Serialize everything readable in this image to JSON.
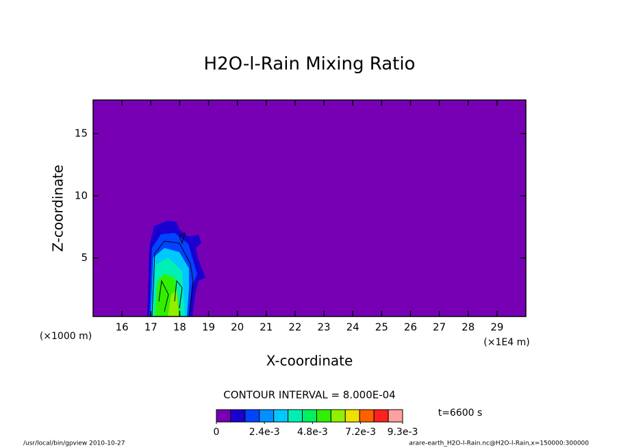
{
  "chart_data": {
    "type": "contour",
    "title": "H2O-l-Rain Mixing Ratio",
    "x_label": "X-coordinate",
    "y_label": "Z-coordinate",
    "x_unit": "(×1E4 m)",
    "y_unit": "(×1000 m)",
    "xlim": [
      15,
      30
    ],
    "xticks": [
      16,
      17,
      18,
      19,
      20,
      21,
      22,
      23,
      24,
      25,
      26,
      27,
      28,
      29
    ],
    "ylim": [
      0.3,
      17.7
    ],
    "yticks": [
      5,
      10,
      15
    ],
    "background": "#7800b4",
    "contour_interval": "CONTOUR INTERVAL = 8.000E-04",
    "time": "t=6600 s",
    "colorbar": {
      "colors": [
        "#7800b4",
        "#1a00d0",
        "#0044ff",
        "#0090ff",
        "#00c8ff",
        "#00f0b4",
        "#00f060",
        "#30f000",
        "#90f000",
        "#f0e000",
        "#ff6000",
        "#ff2020",
        "#ffa0a0"
      ],
      "clim": [
        0,
        0.0093
      ],
      "ticks": [
        0,
        {
          "value": 0.0024,
          "label": "2.4e-3"
        },
        {
          "value": 0.0048,
          "label": "4.8e-3"
        },
        {
          "value": 0.0072,
          "label": "7.2e-3"
        },
        {
          "value": 0.0093,
          "label": "9.3e-3"
        }
      ]
    }
  },
  "footer": {
    "left": "/usr/local/bin/gpview  2010-10-27",
    "right": "arare-earth_H2O-l-Rain.nc@H2O-l-Rain,x=150000:300000"
  }
}
